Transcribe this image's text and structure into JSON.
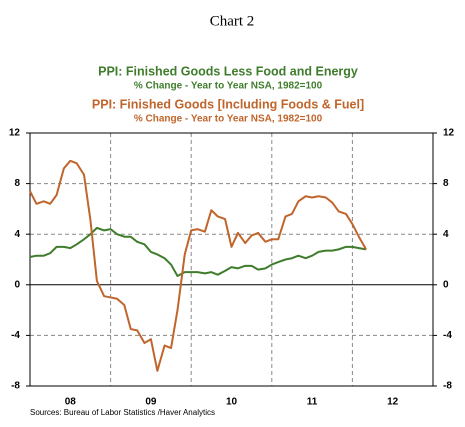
{
  "chart_data": {
    "type": "line",
    "title": "Chart 2",
    "series": [
      {
        "name": "PPI: Finished Goods Less Food and Energy",
        "subtitle": "% Change - Year to Year    NSA, 1982=100",
        "color": "#3f7d2c",
        "values": [
          2.2,
          2.3,
          2.3,
          2.5,
          3.0,
          3.0,
          2.9,
          3.2,
          3.6,
          4.0,
          4.5,
          4.3,
          4.4,
          4.0,
          3.8,
          3.8,
          3.4,
          3.2,
          2.6,
          2.4,
          2.1,
          1.6,
          0.7,
          1.0,
          1.0,
          1.0,
          0.9,
          1.0,
          0.8,
          1.1,
          1.4,
          1.3,
          1.5,
          1.5,
          1.2,
          1.3,
          1.6,
          1.8,
          2.0,
          2.1,
          2.3,
          2.1,
          2.3,
          2.6,
          2.7,
          2.7,
          2.8,
          3.0,
          3.0,
          2.9,
          2.8
        ]
      },
      {
        "name": "PPI: Finished Goods [Including Foods & Fuel]",
        "subtitle": "% Change - Year to Year    NSA, 1982=100",
        "color": "#c0652b",
        "values": [
          7.4,
          6.4,
          6.6,
          6.4,
          7.1,
          9.2,
          9.8,
          9.6,
          8.7,
          5.1,
          0.3,
          -0.9,
          -1.0,
          -1.1,
          -1.6,
          -3.5,
          -3.6,
          -4.6,
          -4.3,
          -6.8,
          -4.8,
          -5.0,
          -2.0,
          2.4,
          4.3,
          4.4,
          4.2,
          5.9,
          5.4,
          5.2,
          3.0,
          4.1,
          3.3,
          3.9,
          4.1,
          3.4,
          3.6,
          3.6,
          5.4,
          5.6,
          6.6,
          7.0,
          6.9,
          7.0,
          6.9,
          6.5,
          5.8,
          5.6,
          4.8,
          3.8,
          2.8
        ]
      }
    ],
    "x": [
      2008,
      2008.08,
      2008.17,
      2008.25,
      2008.33,
      2008.42,
      2008.5,
      2008.58,
      2008.67,
      2008.75,
      2008.83,
      2008.92,
      2009,
      2009.08,
      2009.17,
      2009.25,
      2009.33,
      2009.42,
      2009.5,
      2009.58,
      2009.67,
      2009.75,
      2009.83,
      2009.92,
      2010,
      2010.08,
      2010.17,
      2010.25,
      2010.33,
      2010.42,
      2010.5,
      2010.58,
      2010.67,
      2010.75,
      2010.83,
      2010.92,
      2011,
      2011.08,
      2011.17,
      2011.25,
      2011.33,
      2011.42,
      2011.5,
      2011.58,
      2011.67,
      2011.75,
      2011.83,
      2011.92,
      2012,
      2012.08,
      2012.17
    ],
    "xlim": [
      2008,
      2013
    ],
    "xticks": [
      {
        "value": 2008.5,
        "label": "08"
      },
      {
        "value": 2009.5,
        "label": "09"
      },
      {
        "value": 2010.5,
        "label": "10"
      },
      {
        "value": 2011.5,
        "label": "11"
      },
      {
        "value": 2012.5,
        "label": "12"
      }
    ],
    "xgrid": [
      2009,
      2010,
      2011,
      2012
    ],
    "ylim": [
      -8,
      12
    ],
    "yticks": [
      -8,
      -4,
      0,
      4,
      8,
      12
    ],
    "grid": true,
    "source": "Sources:  Bureau of Labor Statistics /Haver Analytics"
  }
}
